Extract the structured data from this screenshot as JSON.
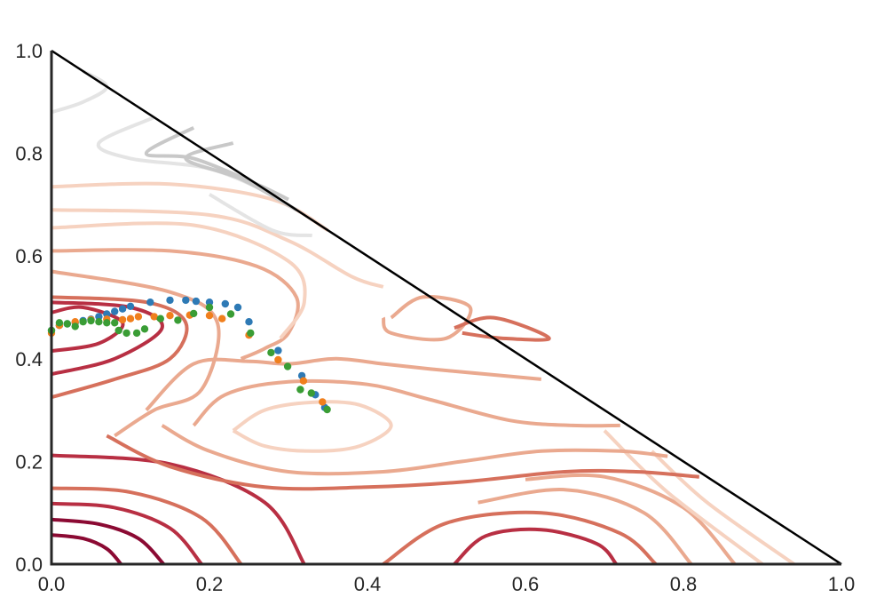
{
  "chart_data": {
    "type": "scatter",
    "title": "",
    "xlabel": "",
    "ylabel": "",
    "xlim": [
      0.0,
      1.0
    ],
    "ylim": [
      0.0,
      1.0
    ],
    "grid": false,
    "legend": "none",
    "x_ticks": [
      "0.0",
      "0.2",
      "0.4",
      "0.6",
      "0.8",
      "1.0"
    ],
    "y_ticks": [
      "0.0",
      "0.2",
      "0.4",
      "0.6",
      "0.8",
      "1.0"
    ],
    "simplex_edge": [
      [
        0.0,
        1.0
      ],
      [
        1.0,
        0.0
      ]
    ],
    "contour_colors": {
      "deep": "#8b0a33",
      "dark": "#b82f43",
      "mid": "#d6705c",
      "light": "#eaa98f",
      "pale": "#f6d2c0",
      "gray_dark": "#c8c8c8",
      "gray_light": "#e4e4e4"
    },
    "contours": [
      {
        "level": "deep",
        "points": [
          [
            0.0,
            0.057
          ],
          [
            0.04,
            0.05
          ],
          [
            0.07,
            0.03
          ],
          [
            0.088,
            0.0
          ]
        ]
      },
      {
        "level": "deep",
        "points": [
          [
            0.0,
            0.087
          ],
          [
            0.06,
            0.078
          ],
          [
            0.11,
            0.05
          ],
          [
            0.142,
            0.0
          ]
        ]
      },
      {
        "level": "dark",
        "points": [
          [
            0.0,
            0.118
          ],
          [
            0.08,
            0.11
          ],
          [
            0.15,
            0.07
          ],
          [
            0.19,
            0.0
          ]
        ]
      },
      {
        "level": "mid",
        "points": [
          [
            0.0,
            0.148
          ],
          [
            0.1,
            0.14
          ],
          [
            0.19,
            0.09
          ],
          [
            0.24,
            0.0
          ]
        ]
      },
      {
        "level": "dark",
        "points": [
          [
            0.0,
            0.212
          ],
          [
            0.15,
            0.195
          ],
          [
            0.27,
            0.12
          ],
          [
            0.32,
            0.0
          ]
        ]
      },
      {
        "level": "dark",
        "points": [
          [
            0.51,
            0.0
          ],
          [
            0.55,
            0.055
          ],
          [
            0.62,
            0.067
          ],
          [
            0.69,
            0.04
          ],
          [
            0.715,
            0.0
          ]
        ]
      },
      {
        "level": "mid",
        "points": [
          [
            0.42,
            0.0
          ],
          [
            0.5,
            0.08
          ],
          [
            0.62,
            0.1
          ],
          [
            0.72,
            0.06
          ],
          [
            0.765,
            0.0
          ]
        ]
      },
      {
        "level": "light",
        "points": [
          [
            0.54,
            0.12
          ],
          [
            0.65,
            0.145
          ],
          [
            0.75,
            0.1
          ],
          [
            0.81,
            0.0
          ]
        ]
      },
      {
        "level": "light",
        "points": [
          [
            0.6,
            0.165
          ],
          [
            0.7,
            0.17
          ],
          [
            0.8,
            0.11
          ],
          [
            0.865,
            0.0
          ]
        ]
      },
      {
        "level": "pale",
        "points": [
          [
            0.7,
            0.26
          ],
          [
            0.78,
            0.14
          ],
          [
            0.9,
            0.0
          ]
        ]
      },
      {
        "level": "pale",
        "points": [
          [
            0.76,
            0.22
          ],
          [
            0.83,
            0.12
          ],
          [
            0.94,
            0.0
          ]
        ]
      },
      {
        "level": "pale",
        "points": [
          [
            0.23,
            0.26
          ],
          [
            0.27,
            0.3
          ],
          [
            0.33,
            0.315
          ],
          [
            0.39,
            0.31
          ],
          [
            0.43,
            0.27
          ],
          [
            0.39,
            0.23
          ],
          [
            0.33,
            0.22
          ],
          [
            0.27,
            0.23
          ],
          [
            0.23,
            0.26
          ]
        ]
      },
      {
        "level": "light",
        "points": [
          [
            0.18,
            0.27
          ],
          [
            0.22,
            0.33
          ],
          [
            0.3,
            0.355
          ],
          [
            0.4,
            0.35
          ],
          [
            0.48,
            0.32
          ],
          [
            0.58,
            0.28
          ],
          [
            0.66,
            0.27
          ],
          [
            0.72,
            0.27
          ]
        ]
      },
      {
        "level": "light",
        "points": [
          [
            0.14,
            0.27
          ],
          [
            0.2,
            0.22
          ],
          [
            0.3,
            0.18
          ],
          [
            0.42,
            0.18
          ],
          [
            0.52,
            0.2
          ],
          [
            0.62,
            0.22
          ],
          [
            0.72,
            0.22
          ],
          [
            0.78,
            0.21
          ]
        ]
      },
      {
        "level": "mid",
        "points": [
          [
            0.07,
            0.25
          ],
          [
            0.15,
            0.19
          ],
          [
            0.27,
            0.15
          ],
          [
            0.4,
            0.15
          ],
          [
            0.52,
            0.16
          ],
          [
            0.65,
            0.18
          ],
          [
            0.74,
            0.18
          ],
          [
            0.82,
            0.17
          ]
        ]
      },
      {
        "level": "light",
        "points": [
          [
            0.12,
            0.3
          ],
          [
            0.18,
            0.39
          ],
          [
            0.25,
            0.395
          ],
          [
            0.3,
            0.39
          ],
          [
            0.36,
            0.4
          ],
          [
            0.42,
            0.39
          ],
          [
            0.48,
            0.38
          ],
          [
            0.55,
            0.37
          ],
          [
            0.62,
            0.36
          ]
        ]
      },
      {
        "level": "light",
        "points": [
          [
            0.08,
            0.25
          ],
          [
            0.13,
            0.3
          ],
          [
            0.19,
            0.34
          ],
          [
            0.21,
            0.47
          ],
          [
            0.15,
            0.53
          ],
          [
            0.0,
            0.57
          ]
        ]
      },
      {
        "level": "mid",
        "points": [
          [
            0.0,
            0.325
          ],
          [
            0.08,
            0.36
          ],
          [
            0.15,
            0.4
          ],
          [
            0.17,
            0.47
          ],
          [
            0.12,
            0.51
          ],
          [
            0.0,
            0.52
          ]
        ]
      },
      {
        "level": "dark",
        "points": [
          [
            0.0,
            0.37
          ],
          [
            0.08,
            0.4
          ],
          [
            0.14,
            0.46
          ],
          [
            0.1,
            0.5
          ],
          [
            0.0,
            0.51
          ]
        ]
      },
      {
        "level": "dark",
        "points": [
          [
            0.0,
            0.415
          ],
          [
            0.06,
            0.43
          ],
          [
            0.09,
            0.47
          ],
          [
            0.04,
            0.5
          ],
          [
            0.0,
            0.49
          ]
        ]
      },
      {
        "level": "light",
        "points": [
          [
            0.0,
            0.61
          ],
          [
            0.15,
            0.61
          ],
          [
            0.26,
            0.58
          ],
          [
            0.31,
            0.52
          ],
          [
            0.3,
            0.45
          ],
          [
            0.27,
            0.42
          ],
          [
            0.24,
            0.4
          ]
        ]
      },
      {
        "level": "pale",
        "points": [
          [
            0.0,
            0.655
          ],
          [
            0.18,
            0.66
          ],
          [
            0.3,
            0.59
          ],
          [
            0.32,
            0.51
          ],
          [
            0.29,
            0.44
          ]
        ]
      },
      {
        "level": "pale",
        "points": [
          [
            0.0,
            0.69
          ],
          [
            0.2,
            0.68
          ],
          [
            0.3,
            0.63
          ],
          [
            0.38,
            0.56
          ],
          [
            0.42,
            0.54
          ]
        ]
      },
      {
        "level": "pale",
        "points": [
          [
            0.0,
            0.735
          ],
          [
            0.15,
            0.74
          ],
          [
            0.28,
            0.71
          ],
          [
            0.35,
            0.65
          ]
        ]
      },
      {
        "level": "light",
        "points": [
          [
            0.43,
            0.48
          ],
          [
            0.47,
            0.52
          ],
          [
            0.53,
            0.5
          ],
          [
            0.5,
            0.44
          ],
          [
            0.43,
            0.45
          ],
          [
            0.42,
            0.48
          ]
        ]
      },
      {
        "level": "mid",
        "points": [
          [
            0.51,
            0.46
          ],
          [
            0.56,
            0.48
          ],
          [
            0.63,
            0.44
          ],
          [
            0.57,
            0.44
          ],
          [
            0.52,
            0.45
          ]
        ]
      },
      {
        "level": "gray_light",
        "points": [
          [
            0.0,
            0.88
          ],
          [
            0.04,
            0.9
          ],
          [
            0.07,
            0.93
          ],
          [
            0.04,
            0.96
          ]
        ]
      },
      {
        "level": "gray_light",
        "points": [
          [
            0.13,
            0.87
          ],
          [
            0.06,
            0.82
          ],
          [
            0.1,
            0.79
          ],
          [
            0.2,
            0.77
          ],
          [
            0.28,
            0.72
          ]
        ]
      },
      {
        "level": "gray_dark",
        "points": [
          [
            0.18,
            0.85
          ],
          [
            0.12,
            0.8
          ],
          [
            0.18,
            0.79
          ],
          [
            0.26,
            0.74
          ],
          [
            0.3,
            0.71
          ]
        ]
      },
      {
        "level": "gray_dark",
        "points": [
          [
            0.23,
            0.82
          ],
          [
            0.17,
            0.79
          ],
          [
            0.24,
            0.75
          ],
          [
            0.31,
            0.69
          ]
        ]
      },
      {
        "level": "gray_light",
        "points": [
          [
            0.2,
            0.72
          ],
          [
            0.28,
            0.65
          ],
          [
            0.33,
            0.64
          ]
        ]
      }
    ],
    "series": [
      {
        "color": "#2e7ab5",
        "points": [
          [
            0.0,
            0.455
          ],
          [
            0.01,
            0.465
          ],
          [
            0.02,
            0.468
          ],
          [
            0.03,
            0.47
          ],
          [
            0.04,
            0.474
          ],
          [
            0.05,
            0.477
          ],
          [
            0.06,
            0.482
          ],
          [
            0.07,
            0.487
          ],
          [
            0.08,
            0.492
          ],
          [
            0.09,
            0.497
          ],
          [
            0.1,
            0.502
          ],
          [
            0.125,
            0.51
          ],
          [
            0.15,
            0.514
          ],
          [
            0.17,
            0.514
          ],
          [
            0.183,
            0.512
          ],
          [
            0.2,
            0.51
          ],
          [
            0.22,
            0.507
          ],
          [
            0.236,
            0.5
          ],
          [
            0.25,
            0.472
          ],
          [
            0.287,
            0.416
          ],
          [
            0.317,
            0.367
          ],
          [
            0.334,
            0.33
          ],
          [
            0.346,
            0.305
          ]
        ]
      },
      {
        "color": "#f07f1d",
        "points": [
          [
            0.0,
            0.45
          ],
          [
            0.01,
            0.465
          ],
          [
            0.03,
            0.472
          ],
          [
            0.05,
            0.476
          ],
          [
            0.07,
            0.477
          ],
          [
            0.09,
            0.476
          ],
          [
            0.1,
            0.478
          ],
          [
            0.11,
            0.482
          ],
          [
            0.13,
            0.482
          ],
          [
            0.15,
            0.484
          ],
          [
            0.175,
            0.485
          ],
          [
            0.2,
            0.484
          ],
          [
            0.216,
            0.478
          ],
          [
            0.25,
            0.446
          ],
          [
            0.287,
            0.398
          ],
          [
            0.319,
            0.357
          ],
          [
            0.343,
            0.316
          ]
        ]
      },
      {
        "color": "#3a9d35",
        "points": [
          [
            0.0,
            0.455
          ],
          [
            0.01,
            0.47
          ],
          [
            0.02,
            0.468
          ],
          [
            0.03,
            0.463
          ],
          [
            0.04,
            0.472
          ],
          [
            0.05,
            0.474
          ],
          [
            0.06,
            0.472
          ],
          [
            0.07,
            0.47
          ],
          [
            0.08,
            0.47
          ],
          [
            0.085,
            0.455
          ],
          [
            0.095,
            0.45
          ],
          [
            0.108,
            0.45
          ],
          [
            0.118,
            0.458
          ],
          [
            0.138,
            0.478
          ],
          [
            0.16,
            0.475
          ],
          [
            0.18,
            0.488
          ],
          [
            0.2,
            0.5
          ],
          [
            0.227,
            0.487
          ],
          [
            0.252,
            0.45
          ],
          [
            0.278,
            0.412
          ],
          [
            0.299,
            0.385
          ],
          [
            0.315,
            0.34
          ],
          [
            0.329,
            0.333
          ],
          [
            0.349,
            0.301
          ]
        ]
      }
    ]
  }
}
